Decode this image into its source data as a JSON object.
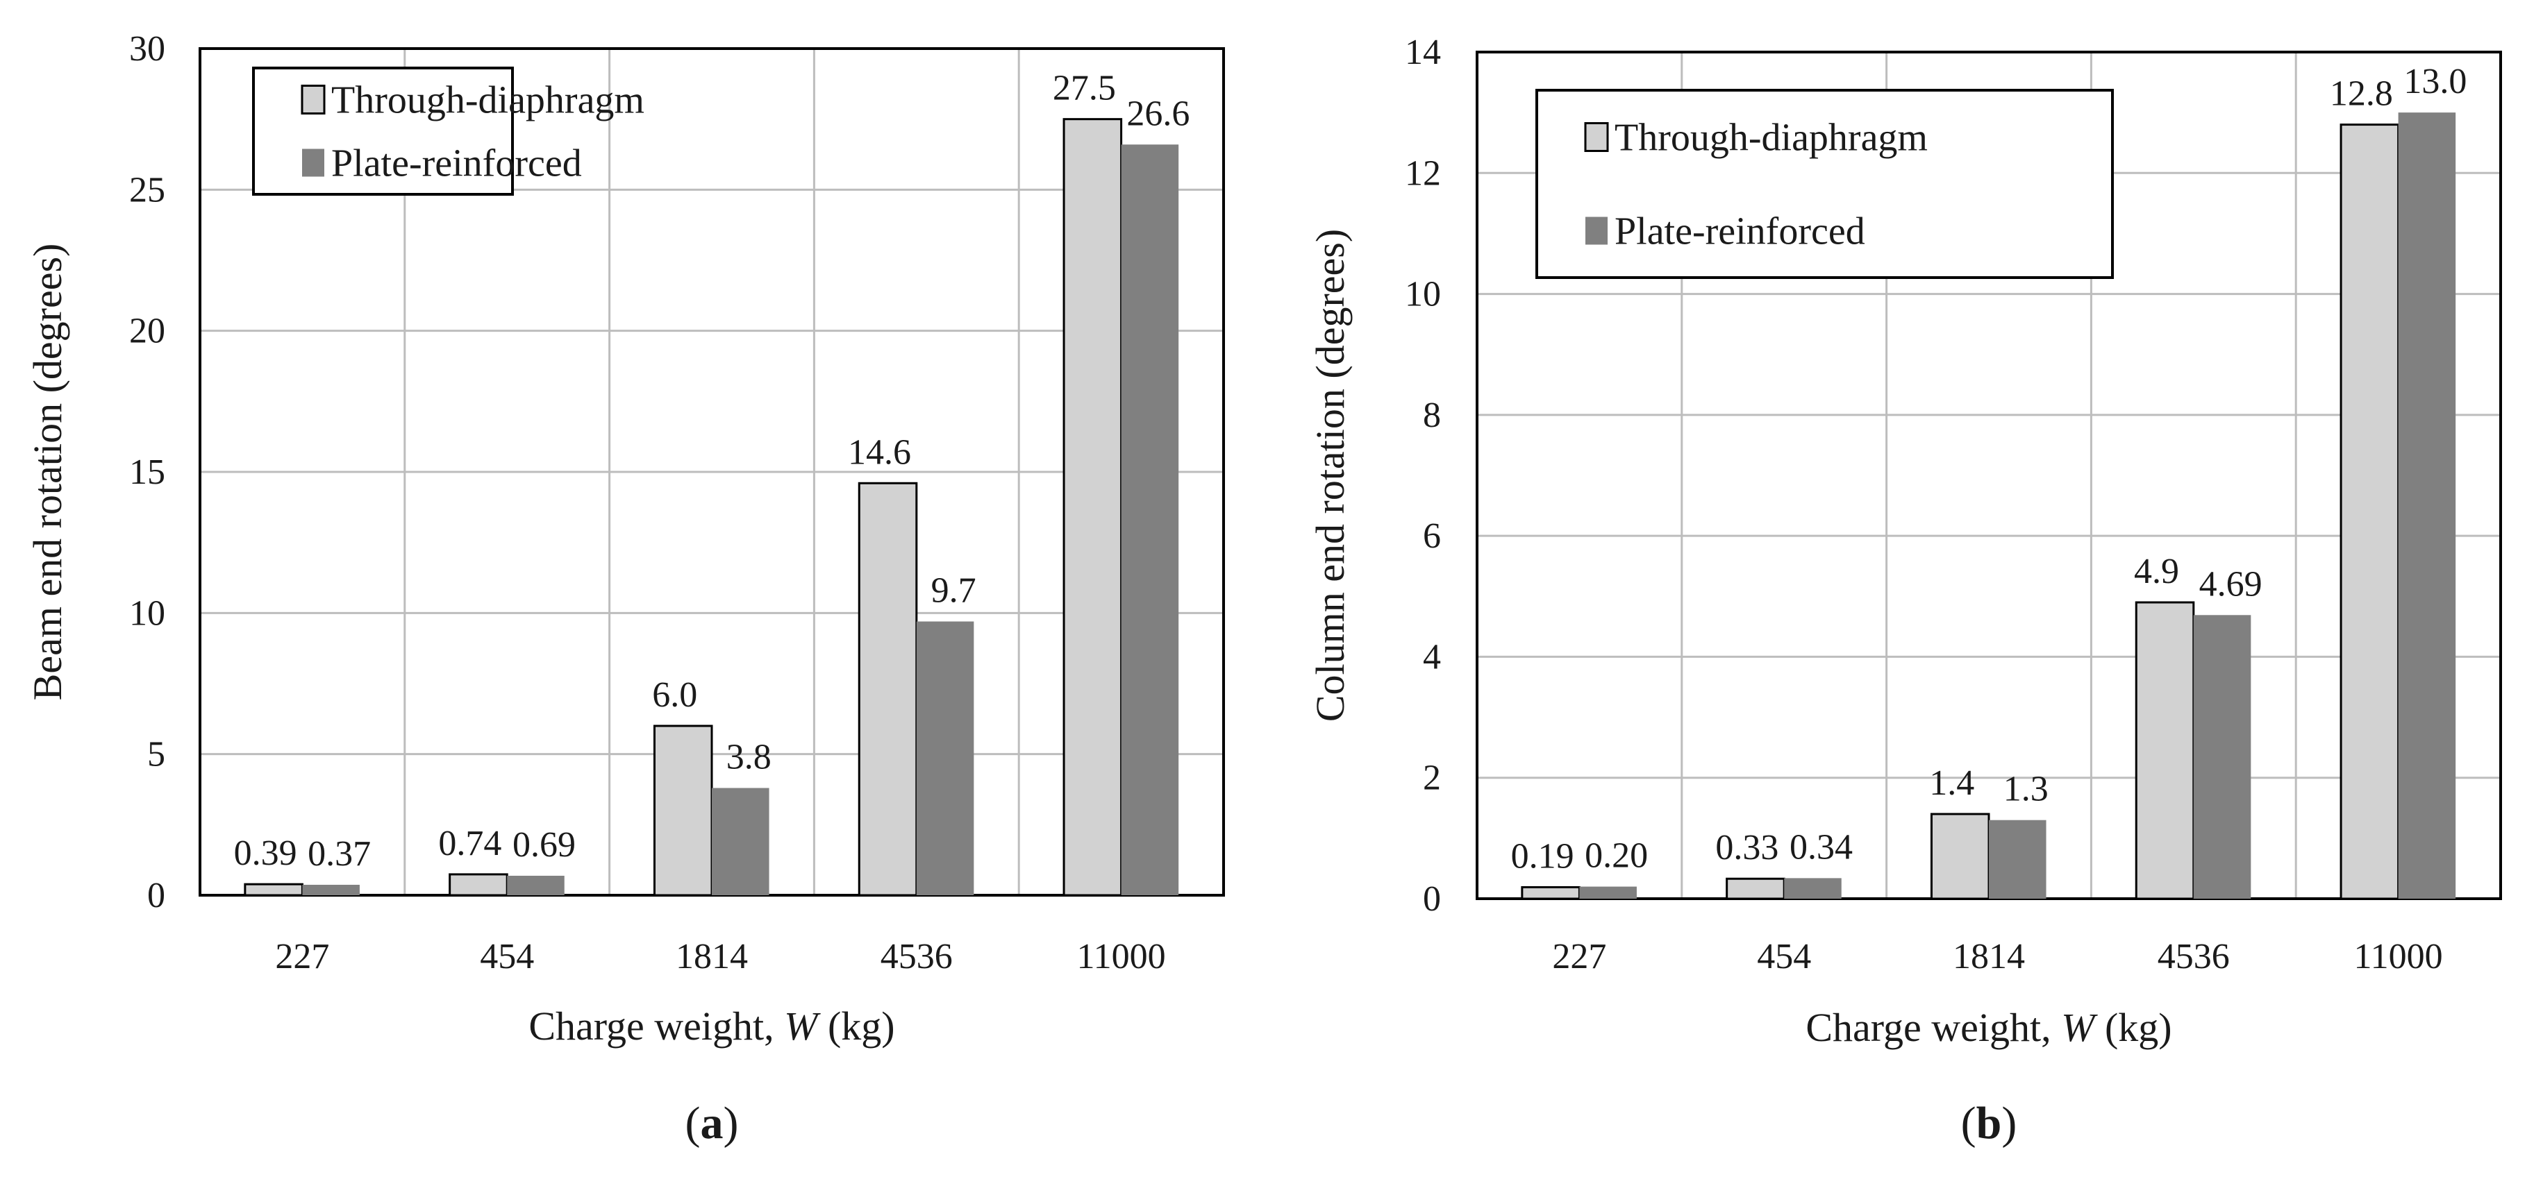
{
  "colors": {
    "through_diaphragm": "#d2d2d2",
    "plate_reinforced": "#808080",
    "gridline": "#bdbdbd",
    "axis": "#000000"
  },
  "chart_data": [
    {
      "type": "bar",
      "panel_label": {
        "open": "(",
        "letter": "a",
        "close": ")"
      },
      "categories": [
        "227",
        "454",
        "1814",
        "4536",
        "11000"
      ],
      "series": [
        {
          "name": "Through-diaphragm",
          "values": [
            0.39,
            0.74,
            6.0,
            14.6,
            27.5
          ],
          "labels": [
            "0.39",
            "0.74",
            "6.0",
            "14.6",
            "27.5"
          ]
        },
        {
          "name": "Plate-reinforced",
          "values": [
            0.37,
            0.69,
            3.8,
            9.7,
            26.6
          ],
          "labels": [
            "0.37",
            "0.69",
            "3.8",
            "9.7",
            "26.6"
          ]
        }
      ],
      "xlabel": {
        "prefix": "Charge weight, ",
        "variable": "W",
        "suffix": " (kg)"
      },
      "ylabel": "Beam end rotation (degrees)",
      "ylim": [
        0,
        30
      ],
      "yticks": [
        "0",
        "5",
        "10",
        "15",
        "20",
        "25",
        "30"
      ],
      "grid": true,
      "legend": "top-left"
    },
    {
      "type": "bar",
      "panel_label": {
        "open": "(",
        "letter": "b",
        "close": ")"
      },
      "categories": [
        "227",
        "454",
        "1814",
        "4536",
        "11000"
      ],
      "series": [
        {
          "name": "Through-diaphragm",
          "values": [
            0.19,
            0.33,
            1.4,
            4.9,
            12.8
          ],
          "labels": [
            "0.19",
            "0.33",
            "1.4",
            "4.9",
            "12.8"
          ]
        },
        {
          "name": "Plate-reinforced",
          "values": [
            0.2,
            0.34,
            1.3,
            4.69,
            13.0
          ],
          "labels": [
            "0.20",
            "0.34",
            "1.3",
            "4.69",
            "13.0"
          ]
        }
      ],
      "xlabel": {
        "prefix": "Charge weight, ",
        "variable": "W",
        "suffix": " (kg)"
      },
      "ylabel": "Column end rotation (degrees)",
      "ylim": [
        0,
        14
      ],
      "yticks": [
        "0",
        "2",
        "4",
        "6",
        "8",
        "10",
        "12",
        "14"
      ],
      "grid": true,
      "legend": "top-left"
    }
  ]
}
